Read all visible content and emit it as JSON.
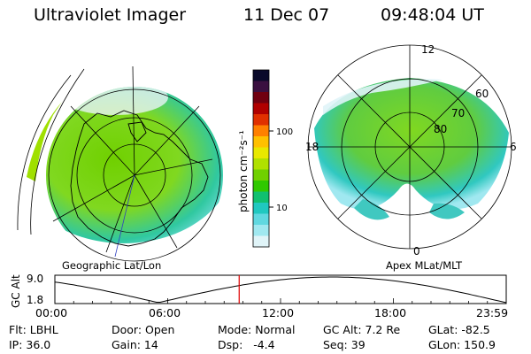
{
  "header": {
    "title": "Ultraviolet Imager",
    "date": "11 Dec 07",
    "time": "09:48:04 UT"
  },
  "left_panel": {
    "caption": "Geographic Lat/Lon"
  },
  "right_panel": {
    "caption": "Apex MLat/MLT",
    "mlt_labels": {
      "top": "12",
      "bottom": "0",
      "left": "18",
      "right": "6"
    },
    "lat_labels": [
      "60",
      "70",
      "80"
    ]
  },
  "colorbar": {
    "unit_label": "photon cm⁻²s⁻¹",
    "ticks": [
      "100",
      "10"
    ],
    "colors": [
      "#0a0a2a",
      "#3a1040",
      "#700010",
      "#b00000",
      "#e03000",
      "#ff8000",
      "#ffc000",
      "#e8e800",
      "#b0e000",
      "#70d000",
      "#30c800",
      "#10c070",
      "#20c8c0",
      "#60d8e0",
      "#a0e8f0",
      "#e0f4f8"
    ]
  },
  "timeline": {
    "ylabel": "GC Alt",
    "ymax_label": "9.0",
    "ymin_label": "1.8",
    "x_ticks": [
      "00:00",
      "06:00",
      "12:00",
      "18:00",
      "23:59"
    ],
    "current_marker_hour": 9.8
  },
  "info": {
    "flt": "Flt: LBHL",
    "ip": "IP: 36.0",
    "door": "Door: Open",
    "gain": "Gain: 14",
    "mode": "Mode: Normal",
    "dsp": "Dsp:   -4.4",
    "gcalt": "GC Alt: 7.2 Re",
    "seq": "Seq: 39",
    "glat": "GLat: -82.5",
    "glon": "GLon: 150.9"
  }
}
